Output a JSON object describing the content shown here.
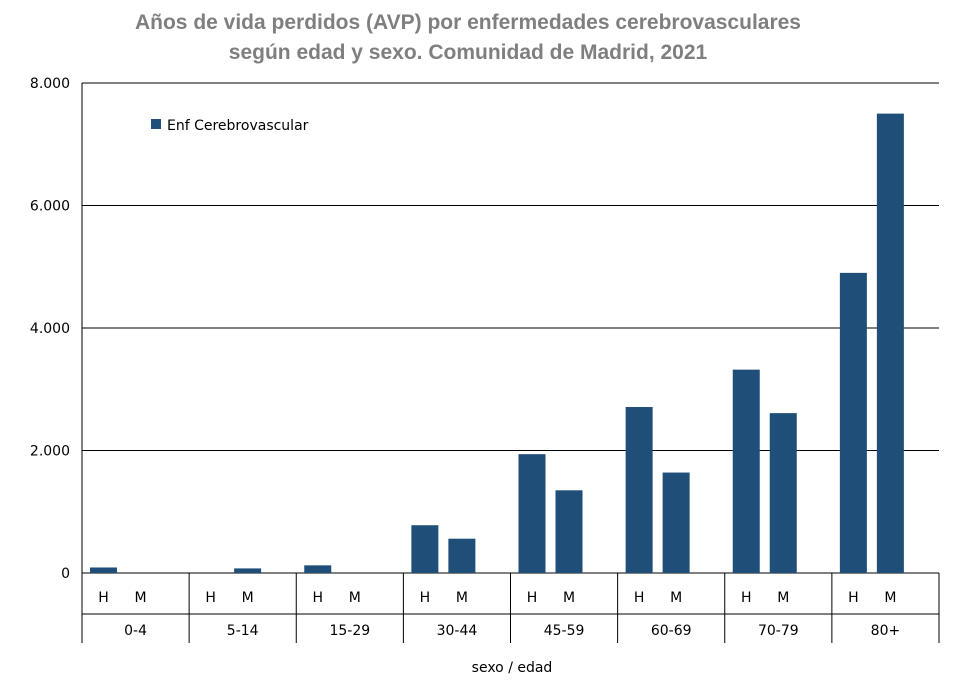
{
  "title_line1": "Años de vida perdidos (AVP) por enfermedades cerebrovasculares",
  "title_line2": "según edad y sexo. Comunidad de Madrid, 2021",
  "colors": {
    "bar": "#1f4e79",
    "grid": "#000000",
    "title": "#7f7f7f"
  },
  "chart_data": {
    "type": "bar",
    "title": "Años de vida perdidos (AVP) por enfermedades cerebrovasculares según edad y sexo. Comunidad de Madrid, 2021",
    "xlabel": "sexo / edad",
    "ylabel": "",
    "ylim": [
      0,
      8000
    ],
    "yticks": [
      0,
      2000,
      4000,
      6000,
      8000
    ],
    "ytick_labels": [
      "0",
      "2.000",
      "4.000",
      "6.000",
      "8.000"
    ],
    "grid": true,
    "legend_position": "top-left",
    "sex_labels": [
      "H",
      "M"
    ],
    "age_groups": [
      "0-4",
      "5-14",
      "15-29",
      "30-44",
      "45-59",
      "60-69",
      "70-79",
      "80+"
    ],
    "series": [
      {
        "name": "Enf Cerebrovascular",
        "values": [
          [
            90,
            0
          ],
          [
            0,
            75
          ],
          [
            125,
            0
          ],
          [
            780,
            560
          ],
          [
            1940,
            1350
          ],
          [
            2710,
            1640
          ],
          [
            3320,
            2610
          ],
          [
            4900,
            7500
          ]
        ]
      }
    ]
  }
}
